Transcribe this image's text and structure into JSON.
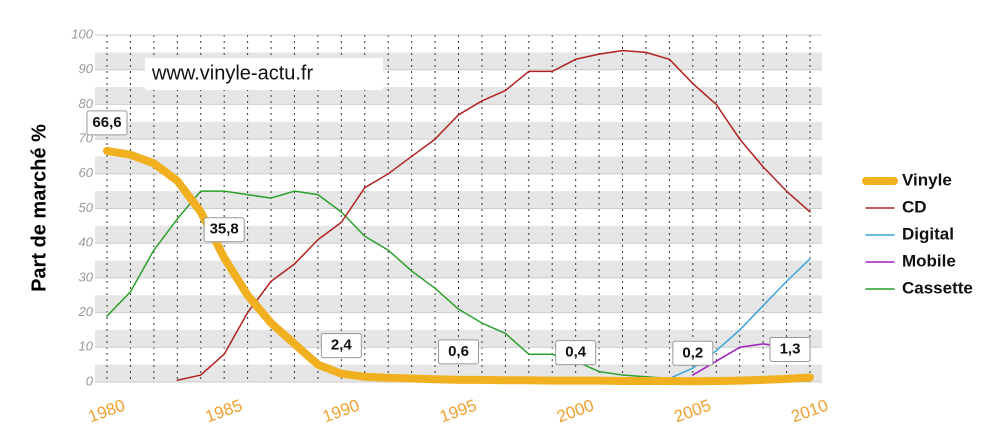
{
  "chart_data": {
    "type": "line",
    "y_label": "Part de marché %",
    "annotation": "www.vinyle-actu.fr",
    "x": [
      1980,
      1981,
      1982,
      1983,
      1984,
      1985,
      1986,
      1987,
      1988,
      1989,
      1990,
      1991,
      1992,
      1993,
      1994,
      1995,
      1996,
      1997,
      1998,
      1999,
      2000,
      2001,
      2002,
      2003,
      2004,
      2005,
      2006,
      2007,
      2008,
      2009,
      2010
    ],
    "xlim": [
      1980,
      2010
    ],
    "xticks": [
      1980,
      1985,
      1990,
      1995,
      2000,
      2005,
      2010
    ],
    "ylim": [
      0,
      100
    ],
    "yticks": [
      0,
      10,
      20,
      30,
      40,
      50,
      60,
      70,
      80,
      90,
      100
    ],
    "grid": true,
    "legend": "right",
    "series": [
      {
        "name": "Vinyle",
        "color": "#f0b020",
        "values": [
          66.6,
          65.5,
          63,
          58,
          49,
          35.8,
          25,
          17,
          11,
          5,
          2.4,
          1.5,
          1.2,
          1,
          0.8,
          0.6,
          0.6,
          0.5,
          0.5,
          0.4,
          0.4,
          0.4,
          0.3,
          0.3,
          0.3,
          0.2,
          0.3,
          0.4,
          0.6,
          0.9,
          1.3
        ],
        "value_labels": [
          "66,6",
          null,
          null,
          null,
          null,
          "35,8",
          null,
          null,
          null,
          null,
          "2,4",
          null,
          null,
          null,
          null,
          "0,6",
          null,
          null,
          null,
          null,
          "0,4",
          null,
          null,
          null,
          null,
          "0,2",
          null,
          null,
          null,
          null,
          "1,3"
        ]
      },
      {
        "name": "CD",
        "color": "#b22222",
        "values": [
          null,
          null,
          null,
          0.5,
          2,
          8,
          20,
          29,
          34,
          41,
          46,
          56,
          60,
          65,
          70,
          77,
          81,
          84,
          89.5,
          89.5,
          93,
          94.5,
          95.5,
          95,
          93,
          86,
          80,
          70,
          62,
          55,
          49
        ]
      },
      {
        "name": "Digital",
        "color": "#3aa6d8",
        "values": [
          null,
          null,
          null,
          null,
          null,
          null,
          null,
          null,
          null,
          null,
          null,
          null,
          null,
          null,
          null,
          null,
          null,
          null,
          null,
          null,
          null,
          null,
          null,
          null,
          1,
          4,
          9,
          15,
          22,
          29,
          35.5
        ]
      },
      {
        "name": "Mobile",
        "color": "#a020c0",
        "values": [
          null,
          null,
          null,
          null,
          null,
          null,
          null,
          null,
          null,
          null,
          null,
          null,
          null,
          null,
          null,
          null,
          null,
          null,
          null,
          null,
          null,
          null,
          null,
          null,
          null,
          2,
          6,
          10,
          11,
          10,
          8.5
        ]
      },
      {
        "name": "Cassette",
        "color": "#2ca02c",
        "values": [
          19,
          26,
          38,
          47,
          55,
          55,
          54,
          53,
          55,
          54,
          49,
          42,
          38,
          32,
          27,
          21,
          17,
          14,
          8,
          8,
          6,
          3,
          2,
          1.5,
          1,
          0.5,
          0.4,
          0.3,
          0.3,
          0.3,
          0.3
        ]
      }
    ]
  }
}
